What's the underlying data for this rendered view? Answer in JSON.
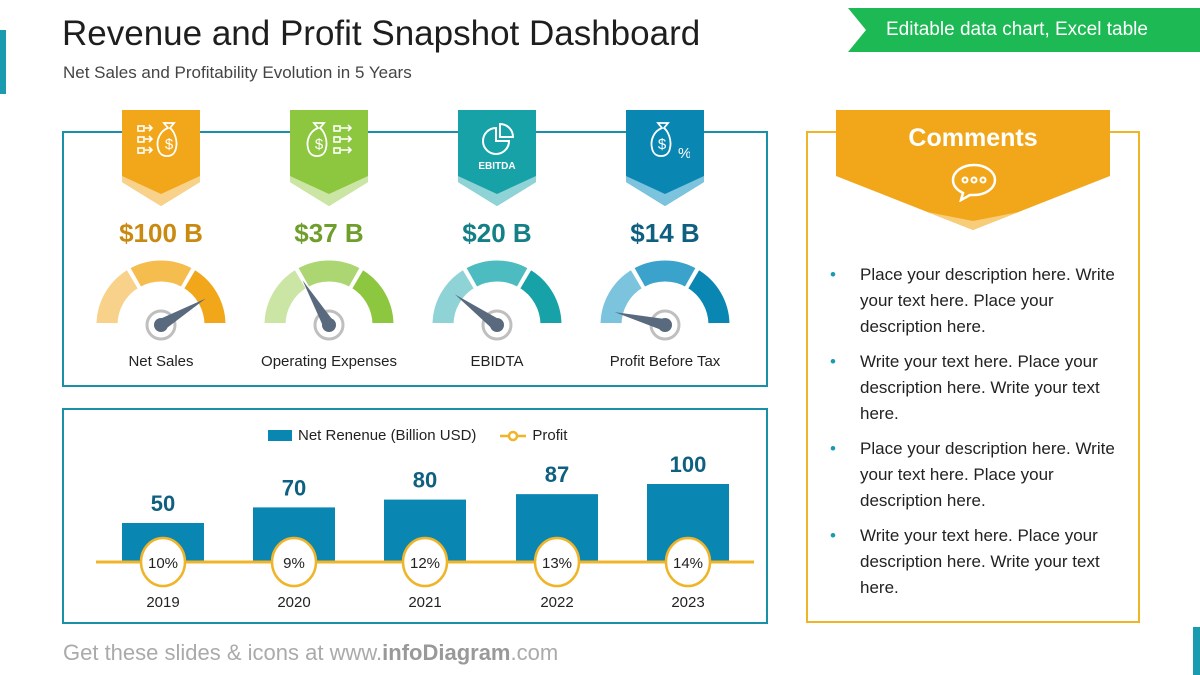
{
  "header": {
    "title": "Revenue and Profit Snapshot Dashboard",
    "subtitle": "Net Sales and Profitability Evolution in 5 Years",
    "tag": "Editable data chart, Excel table"
  },
  "kpis": [
    {
      "label": "Net Sales",
      "value": "$100 B",
      "icon": "money-bag-inflow-icon",
      "color": "#f2a71b",
      "light": "#f8d28b",
      "mid": "#f5bc4e",
      "text": "#c98a12",
      "gauge_level": 0.83
    },
    {
      "label": "Operating Expenses",
      "value": "$37 B",
      "icon": "money-bag-outflow-icon",
      "color": "#8dc63f",
      "light": "#cbe5a4",
      "mid": "#acd672",
      "text": "#6f9e2c",
      "gauge_level": 0.33
    },
    {
      "label": "EBIDTA",
      "value": "$20 B",
      "icon": "pie-chart-icon",
      "icon_text": "EBITDA",
      "color": "#17a2a8",
      "light": "#8fd3d6",
      "mid": "#4dbcc1",
      "text": "#137f86",
      "gauge_level": 0.2
    },
    {
      "label": "Profit Before Tax",
      "value": "$14 B",
      "icon": "money-bag-percent-icon",
      "color": "#0a86b3",
      "light": "#7cc3de",
      "mid": "#3ba3cb",
      "text": "#0e5f80",
      "gauge_level": 0.08
    }
  ],
  "chart_data": {
    "type": "bar",
    "categories": [
      "2019",
      "2020",
      "2021",
      "2022",
      "2023"
    ],
    "series": [
      {
        "name": "Net Renenue (Billion USD)",
        "values": [
          50,
          70,
          80,
          87,
          100
        ],
        "color": "#0a86b3"
      },
      {
        "name": "Profit",
        "values": [
          "10%",
          "9%",
          "12%",
          "13%",
          "14%"
        ],
        "color": "#f0b429"
      }
    ],
    "legend": "top-center"
  },
  "comments": {
    "title": "Comments",
    "icon": "speech-bubble-icon",
    "items": [
      "Place your description here. Write your text here. Place your description here.",
      "Write your text here. Place your description here. Write your text here.",
      "Place your description here. Write your text here. Place your description here.",
      "Write your text here. Place your description here. Write your text here."
    ]
  },
  "footer": {
    "pre": "Get these slides & icons at www.",
    "brand": "infoDiagram",
    ".com": ".com"
  }
}
